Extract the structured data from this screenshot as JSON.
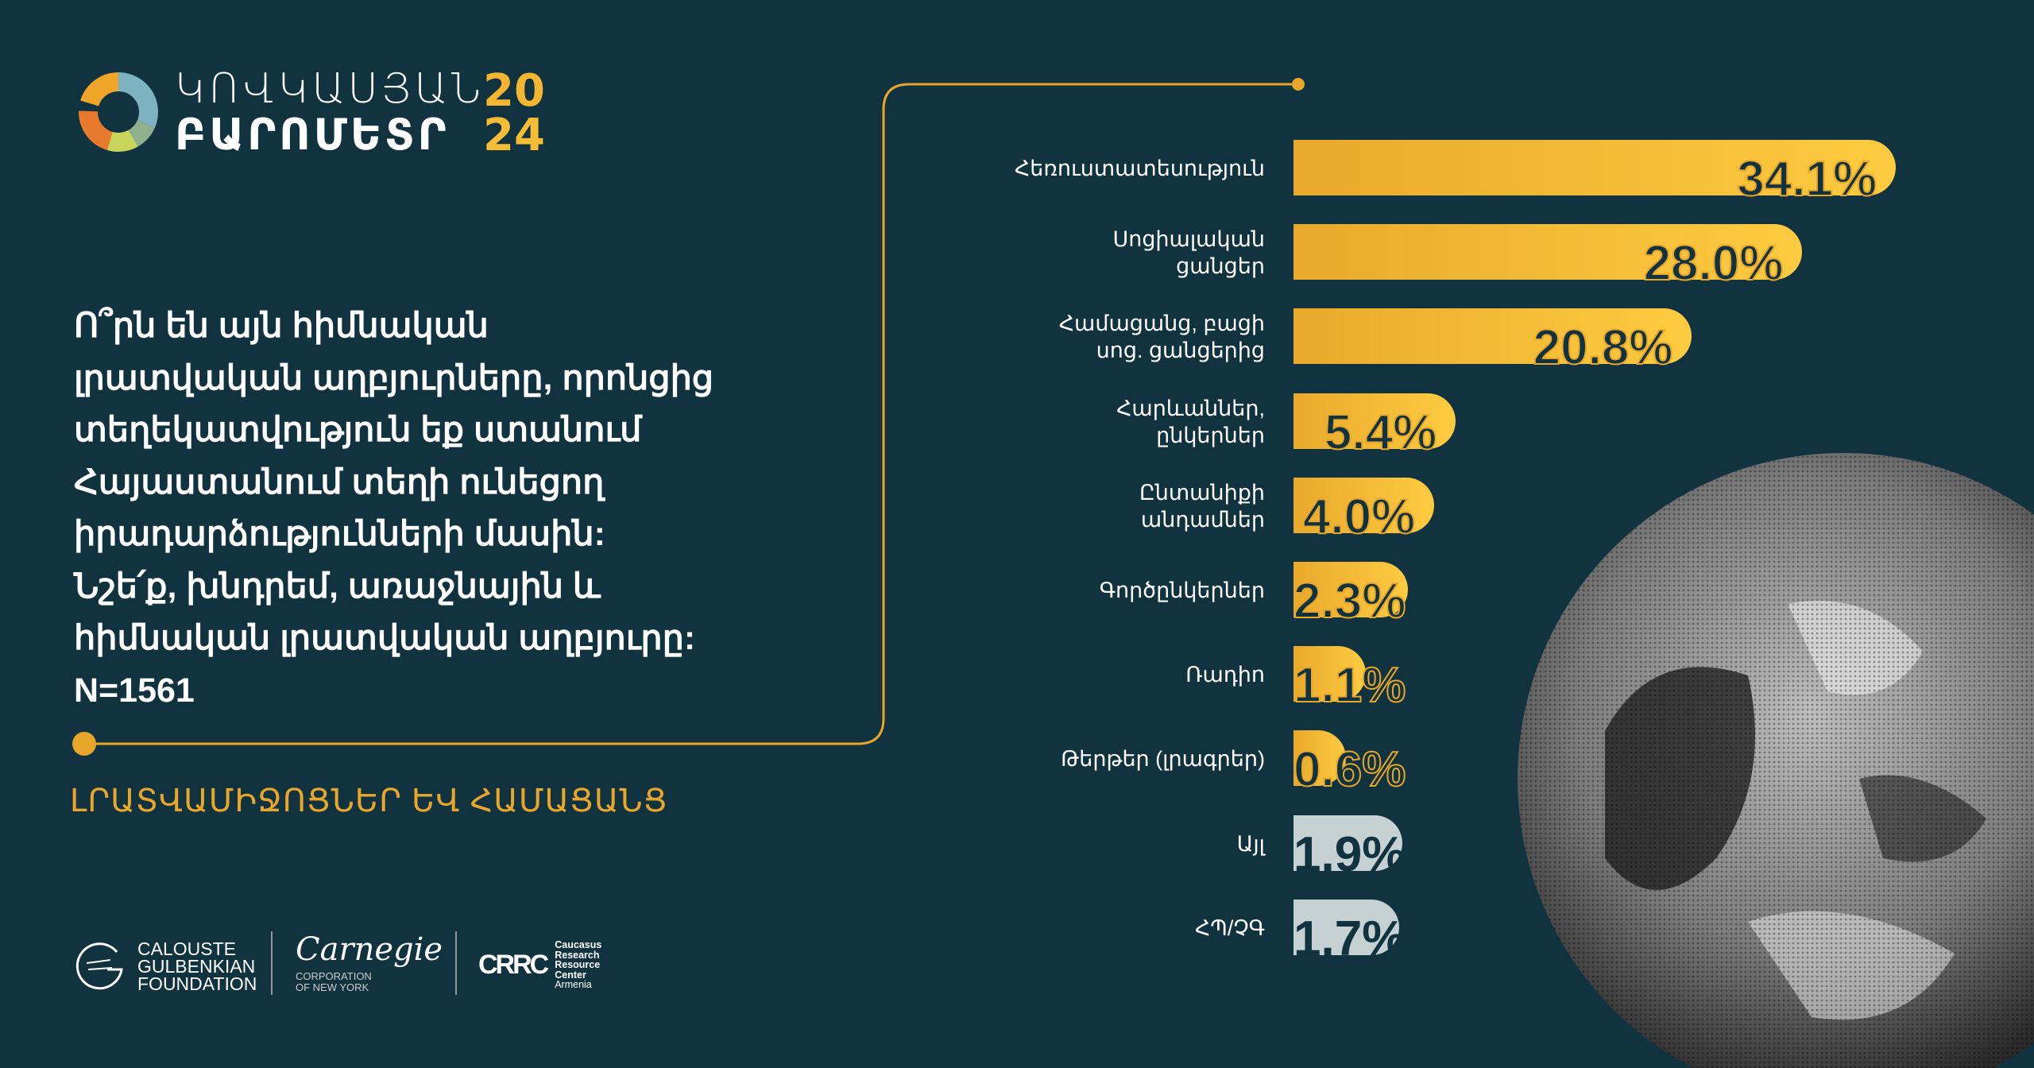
{
  "logo": {
    "line1": "ԿՈՎԿԱՍՅԱՆ",
    "line2": "ԲԱՐՈՄԵՏՐ",
    "year1": "20",
    "year2": "24"
  },
  "question": "Ո՞րն են այն հիմնական\nլրատվական աղբյուրները, որոնցից\nտեղեկատվություն եք ստանում\nՀայաստանում տեղի ունեցող\nիրադարձությունների մասին:\nՆշե՛ք, խնդրեմ, առաջնային և\nհիմնական լրատվական աղբյուրը:\nN=1561",
  "section_heading": "ԼՐԱՏՎԱՄԻՋՈՑՆԵՐ ԵՎ ՀԱՄԱՑԱՆՑ",
  "colors": {
    "background": "#11323f",
    "accent": "#f2b632",
    "accent_dark": "#e9a92c",
    "other": "#c5d1d3"
  },
  "chart_data": {
    "type": "bar",
    "orientation": "horizontal",
    "unit": "%",
    "categories": [
      "Հեռուստատեսություն",
      "Սոցիալական\nցանցեր",
      "Համացանց, բացի\nսոց. ցանցերից",
      "Հարևաններ,\nընկերներ",
      "Ընտանիքի\nանդամներ",
      "Գործընկերներ",
      "Ռադիո",
      "Թերթեր (լրագրեր)",
      "Այլ",
      "ՀՊ/ՉԳ"
    ],
    "values": [
      34.1,
      28.0,
      20.8,
      5.4,
      4.0,
      2.3,
      1.1,
      0.6,
      1.9,
      1.7
    ],
    "labels": [
      "34.1%",
      "28.0%",
      "20.8%",
      "5.4%",
      "4.0%",
      "2.3%",
      "1.1%",
      "0.6%",
      "1.9%",
      "1.7%"
    ],
    "bar_colors": [
      "#f2b632",
      "#f2b632",
      "#f2b632",
      "#f2b632",
      "#f2b632",
      "#f2b632",
      "#f2b632",
      "#f2b632",
      "#c5d1d3",
      "#c5d1d3"
    ],
    "grid": false
  },
  "footer": {
    "gulbenkian": [
      "CALOUSTE",
      "GULBENKIAN",
      "FOUNDATION"
    ],
    "carnegie_sign": "Carnegie",
    "carnegie": [
      "CORPORATION",
      "OF NEW YORK"
    ],
    "crrc_mark": "CRRC",
    "crrc": [
      "Caucasus",
      "Research",
      "Resource",
      "Center",
      "Armenia"
    ]
  }
}
